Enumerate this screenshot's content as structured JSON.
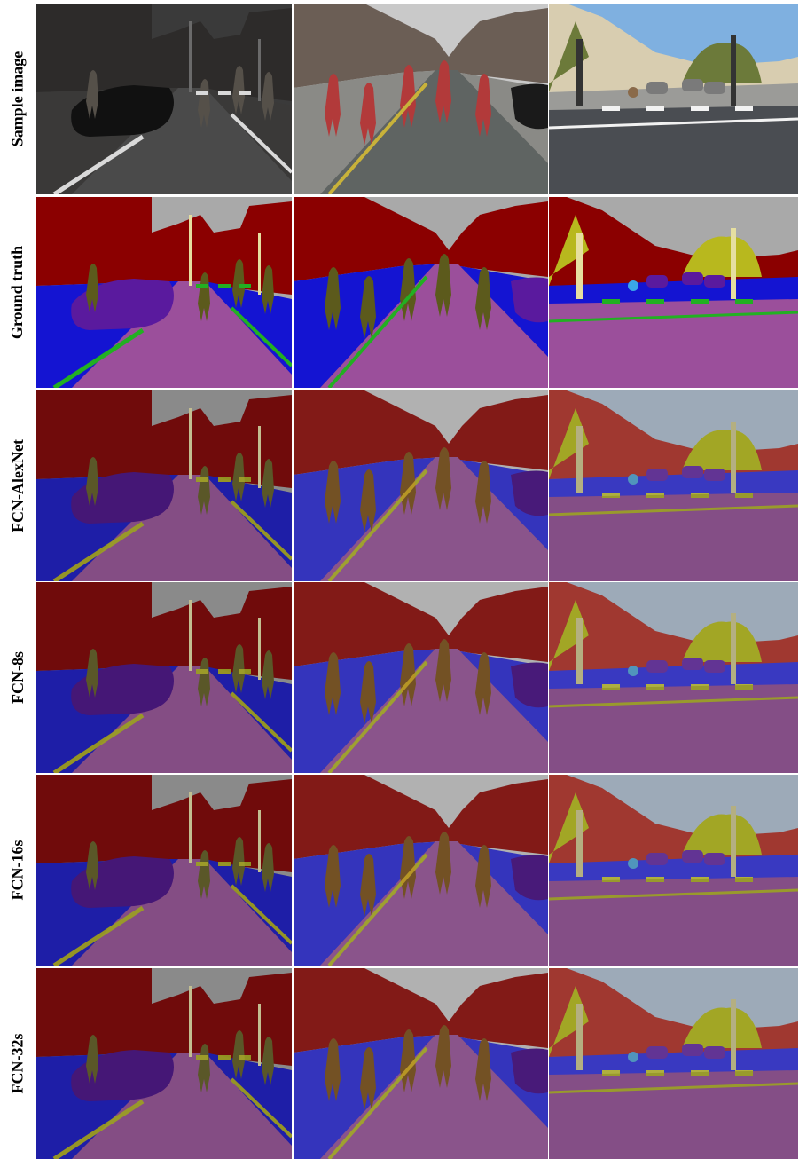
{
  "figure": {
    "rows": [
      {
        "label": "Sample image",
        "kind": "photo"
      },
      {
        "label": "Ground truth",
        "kind": "mask"
      },
      {
        "label": "FCN-AlexNet",
        "kind": "overlay"
      },
      {
        "label": "FCN-8s",
        "kind": "overlay"
      },
      {
        "label": "FCN-16s",
        "kind": "overlay"
      },
      {
        "label": "FCN-32s",
        "kind": "overlay"
      }
    ],
    "columns": [
      {
        "scene": "night street with parked car and pedestrians"
      },
      {
        "scene": "sidewalk with brick wall and walking pedestrians"
      },
      {
        "scene": "sunny intersection with traffic lights and crosswalk"
      }
    ],
    "class_colors": {
      "building": "#8b0000",
      "sky": "#a9a9a9",
      "road": "#9b4f9b",
      "sidewalk": "#1414d2",
      "car": "#5a1a9e",
      "pedestrian": "#5c5a1c",
      "pole": "#e6dfa0",
      "lane_marking": "#22b022",
      "vegetation": "#b8b81e",
      "cyclist": "#3aa6e8"
    }
  }
}
